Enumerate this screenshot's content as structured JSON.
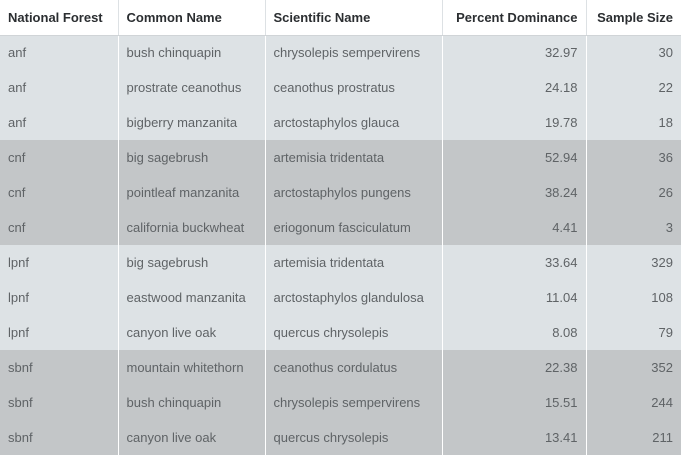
{
  "table": {
    "headers": [
      "National Forest",
      "Common Name",
      "Scientific Name",
      "Percent Dominance",
      "Sample Size"
    ],
    "rows": [
      {
        "forest": "anf",
        "common": "bush chinquapin",
        "scientific": "chrysolepis sempervirens",
        "dominance": "32.97",
        "sample": "30",
        "shade": "light"
      },
      {
        "forest": "anf",
        "common": "prostrate ceanothus",
        "scientific": "ceanothus prostratus",
        "dominance": "24.18",
        "sample": "22",
        "shade": "light"
      },
      {
        "forest": "anf",
        "common": "bigberry manzanita",
        "scientific": "arctostaphylos glauca",
        "dominance": "19.78",
        "sample": "18",
        "shade": "light"
      },
      {
        "forest": "cnf",
        "common": "big sagebrush",
        "scientific": "artemisia tridentata",
        "dominance": "52.94",
        "sample": "36",
        "shade": "dark"
      },
      {
        "forest": "cnf",
        "common": "pointleaf manzanita",
        "scientific": "arctostaphylos pungens",
        "dominance": "38.24",
        "sample": "26",
        "shade": "dark"
      },
      {
        "forest": "cnf",
        "common": "california buckwheat",
        "scientific": "eriogonum fasciculatum",
        "dominance": "4.41",
        "sample": "3",
        "shade": "dark"
      },
      {
        "forest": "lpnf",
        "common": "big sagebrush",
        "scientific": "artemisia tridentata",
        "dominance": "33.64",
        "sample": "329",
        "shade": "light"
      },
      {
        "forest": "lpnf",
        "common": "eastwood manzanita",
        "scientific": "arctostaphylos glandulosa",
        "dominance": "11.04",
        "sample": "108",
        "shade": "light"
      },
      {
        "forest": "lpnf",
        "common": "canyon live oak",
        "scientific": "quercus chrysolepis",
        "dominance": "8.08",
        "sample": "79",
        "shade": "light"
      },
      {
        "forest": "sbnf",
        "common": "mountain whitethorn",
        "scientific": "ceanothus cordulatus",
        "dominance": "22.38",
        "sample": "352",
        "shade": "dark"
      },
      {
        "forest": "sbnf",
        "common": "bush chinquapin",
        "scientific": "chrysolepis sempervirens",
        "dominance": "15.51",
        "sample": "244",
        "shade": "dark"
      },
      {
        "forest": "sbnf",
        "common": "canyon live oak",
        "scientific": "quercus chrysolepis",
        "dominance": "13.41",
        "sample": "211",
        "shade": "dark"
      }
    ]
  },
  "colors": {
    "light_group": "#dde2e5",
    "dark_group": "#c3c6c8",
    "header_text": "#2b2e31",
    "cell_text": "#5f6366"
  }
}
